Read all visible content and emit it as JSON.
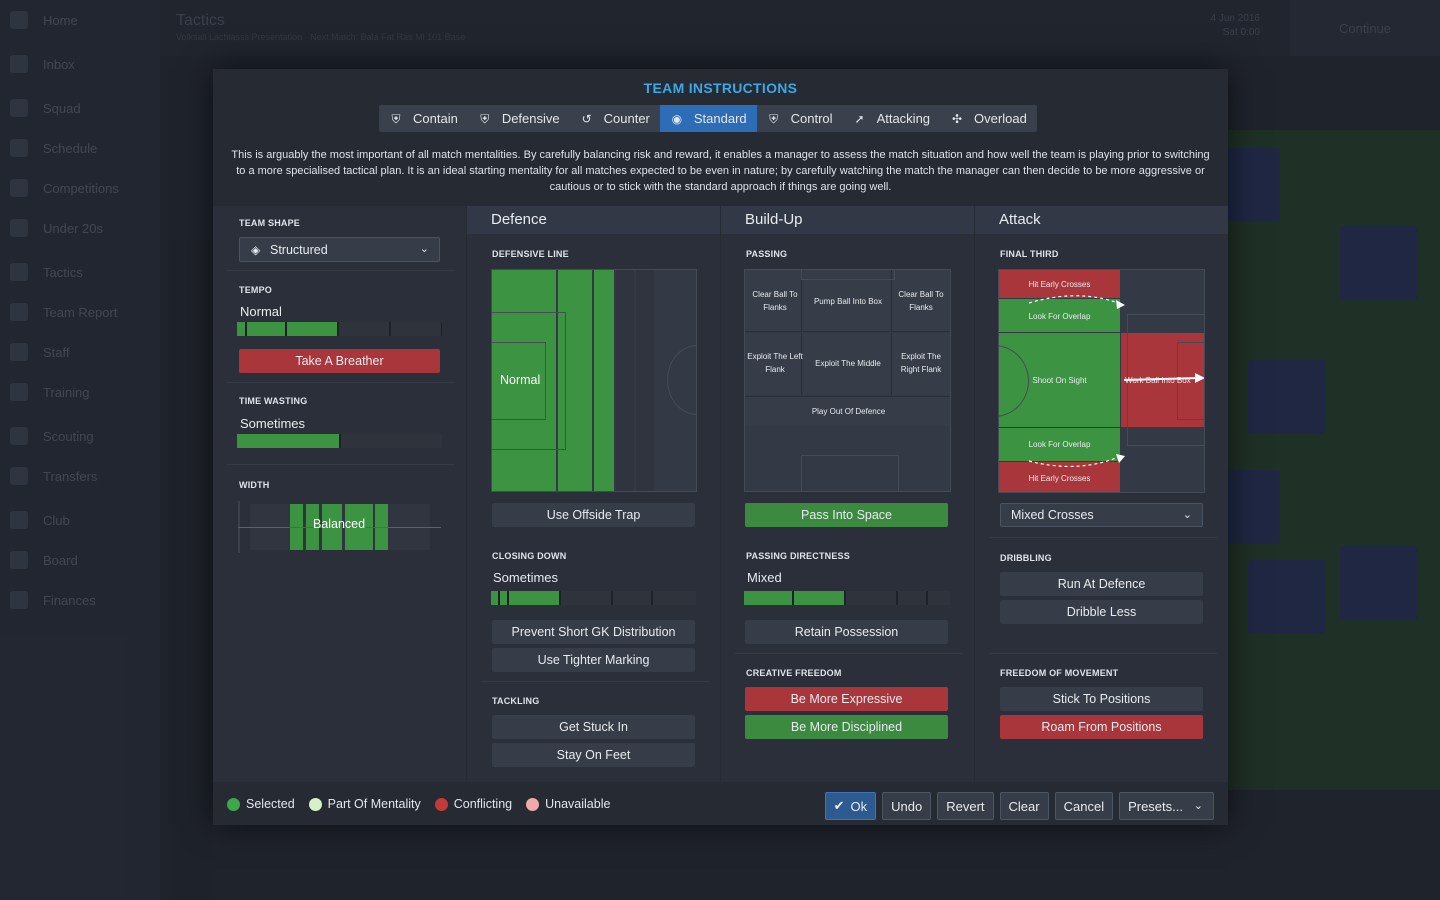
{
  "background": {
    "sidebar": [
      "Home",
      "Inbox",
      "Squad",
      "Schedule",
      "Competitions",
      "Under 20s",
      "Tactics",
      "Team Report",
      "Staff",
      "Training",
      "Scouting",
      "Transfers",
      "Club",
      "Board",
      "Finances"
    ],
    "title": "Tactics",
    "subtitle": "Volksall Lachlasss Presentation · Next Match: Bala Fat Ras Ml 101 Base",
    "date": "4 Jun 2016",
    "time": "Sat 0:00",
    "continue": "Continue"
  },
  "modal": {
    "title": "TEAM INSTRUCTIONS",
    "mentalities": [
      {
        "label": "Contain",
        "icon": "shield-icon"
      },
      {
        "label": "Defensive",
        "icon": "shield-icon"
      },
      {
        "label": "Counter",
        "icon": "counter-icon"
      },
      {
        "label": "Standard",
        "icon": "standard-icon",
        "active": true
      },
      {
        "label": "Control",
        "icon": "shield-icon"
      },
      {
        "label": "Attacking",
        "icon": "attacking-icon"
      },
      {
        "label": "Overload",
        "icon": "overload-icon"
      }
    ],
    "description": "This is arguably the most important of all match mentalities. By carefully balancing risk and reward, it enables a manager to assess the match situation and how well the team is playing prior to switching to a more specialised tactical plan. It is an ideal starting mentality for all matches expected to be even in nature; by carefully watching the match the manager can then decide to be more aggressive or cautious or to stick with the standard approach if things are going well."
  },
  "general": {
    "team_shape_label": "TEAM SHAPE",
    "team_shape_value": "Structured",
    "tempo_label": "TEMPO",
    "tempo_value": "Normal",
    "tempo_level": 0.5,
    "take_breather": "Take A Breather",
    "time_wasting_label": "TIME WASTING",
    "time_wasting_value": "Sometimes",
    "time_wasting_level": 0.5,
    "width_label": "WIDTH",
    "width_value": "Balanced"
  },
  "defence": {
    "header": "Defence",
    "defensive_line_label": "DEFENSIVE LINE",
    "defensive_line_value": "Normal",
    "offside_trap": "Use Offside Trap",
    "closing_down_label": "CLOSING DOWN",
    "closing_down_value": "Sometimes",
    "closing_down_level": 0.4,
    "prevent_gk": "Prevent Short GK Distribution",
    "tighter_marking": "Use Tighter Marking",
    "tackling_label": "TACKLING",
    "get_stuck_in": "Get Stuck In",
    "stay_on_feet": "Stay On Feet"
  },
  "buildup": {
    "header": "Build-Up",
    "passing_label": "PASSING",
    "zones": {
      "clear_left": "Clear Ball To Flanks",
      "pump_box": "Pump Ball Into Box",
      "clear_right": "Clear Ball To Flanks",
      "exploit_left": "Exploit The Left Flank",
      "exploit_middle": "Exploit The Middle",
      "exploit_right": "Exploit The Right Flank",
      "play_out": "Play Out Of Defence"
    },
    "pass_into_space": "Pass Into Space",
    "directness_label": "PASSING DIRECTNESS",
    "directness_value": "Mixed",
    "directness_level": 0.5,
    "retain_possession": "Retain Possession",
    "creative_label": "CREATIVE FREEDOM",
    "be_expressive": "Be More Expressive",
    "be_disciplined": "Be More Disciplined"
  },
  "attack": {
    "header": "Attack",
    "final_third_label": "FINAL THIRD",
    "zones": {
      "hit_early_top": "Hit Early Crosses",
      "overlap_top": "Look For Overlap",
      "shoot_on_sight": "Shoot On Sight",
      "work_ball": "Work Ball Into Box",
      "overlap_bottom": "Look For Overlap",
      "hit_early_bottom": "Hit Early Crosses"
    },
    "crosses_value": "Mixed Crosses",
    "dribbling_label": "DRIBBLING",
    "run_at_defence": "Run At Defence",
    "dribble_less": "Dribble Less",
    "freedom_label": "FREEDOM OF MOVEMENT",
    "stick_positions": "Stick To Positions",
    "roam_positions": "Roam From Positions"
  },
  "legend": {
    "selected": "Selected",
    "part_of_mentality": "Part Of Mentality",
    "conflicting": "Conflicting",
    "unavailable": "Unavailable"
  },
  "colors": {
    "selected": "#3da84a",
    "part_of_mentality": "#d6f0c8",
    "conflicting": "#c23a3a",
    "unavailable": "#f0a9ac",
    "accent": "#3da8e6"
  },
  "footer": {
    "ok": "Ok",
    "undo": "Undo",
    "revert": "Revert",
    "clear": "Clear",
    "cancel": "Cancel",
    "presets": "Presets..."
  }
}
